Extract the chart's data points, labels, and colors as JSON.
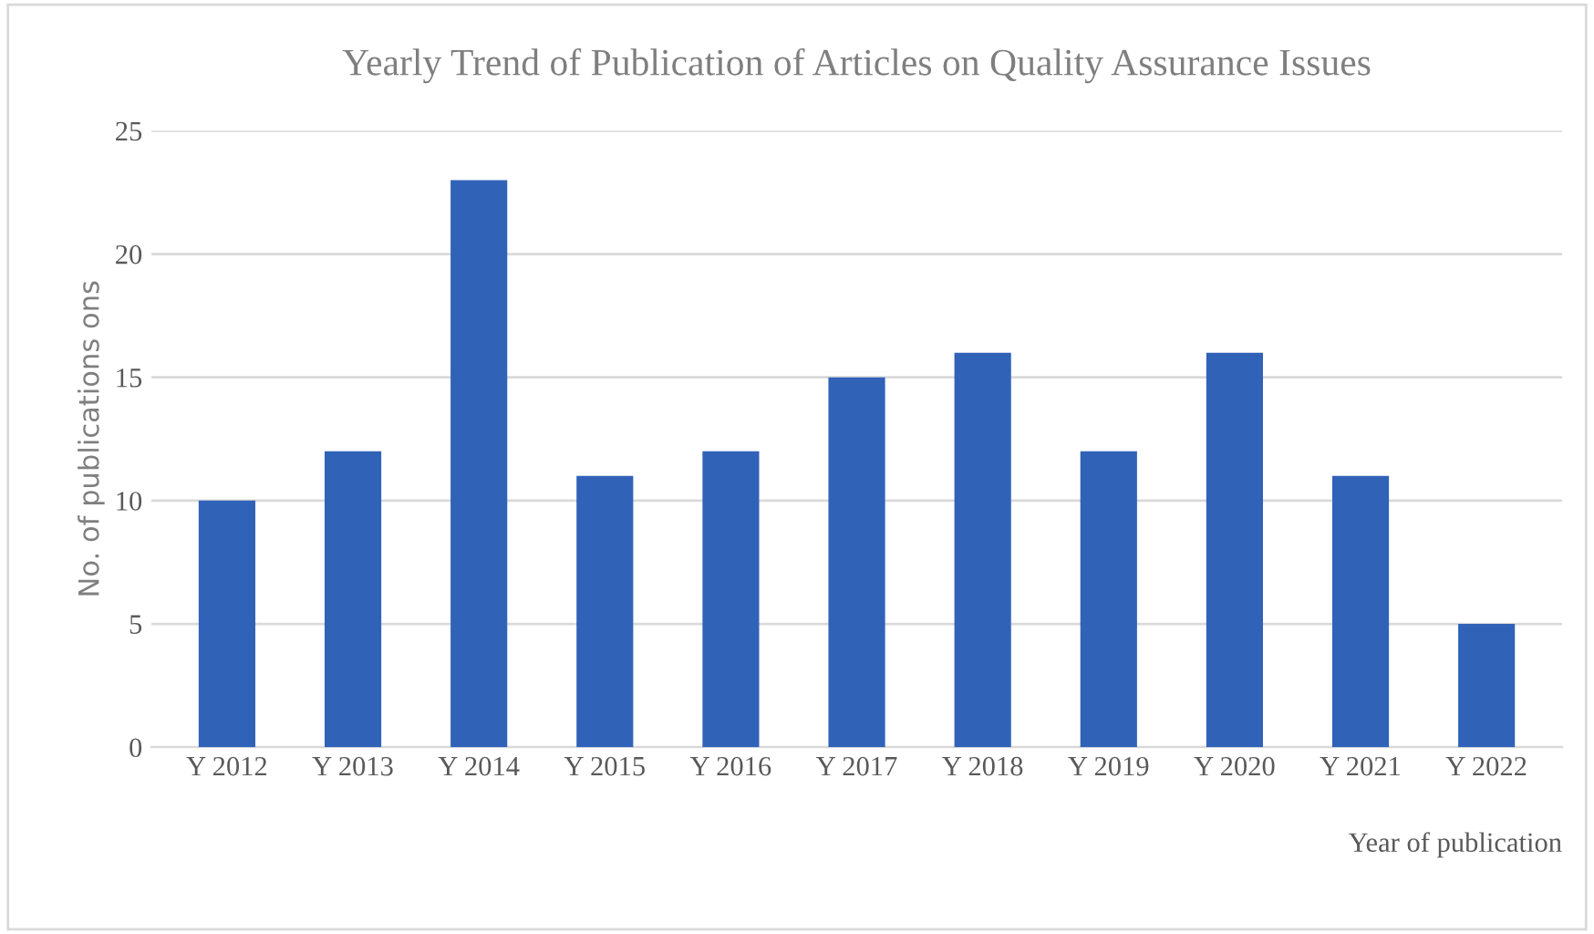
{
  "chart_data": {
    "type": "bar",
    "title": "Yearly Trend of Publication of Articles on Quality Assurance Issues",
    "xlabel": "Year of publication",
    "ylabel": "No. of publications ons",
    "categories": [
      "Y 2012",
      "Y 2013",
      "Y 2014",
      "Y 2015",
      "Y 2016",
      "Y 2017",
      "Y 2018",
      "Y 2019",
      "Y 2020",
      "Y 2021",
      "Y 2022"
    ],
    "values": [
      10,
      12,
      23,
      11,
      12,
      15,
      16,
      12,
      16,
      11,
      5
    ],
    "color": "#3062b8",
    "ylim": [
      0,
      25
    ],
    "yticks": [
      0,
      5,
      10,
      15,
      20,
      25
    ],
    "grid": "y"
  }
}
